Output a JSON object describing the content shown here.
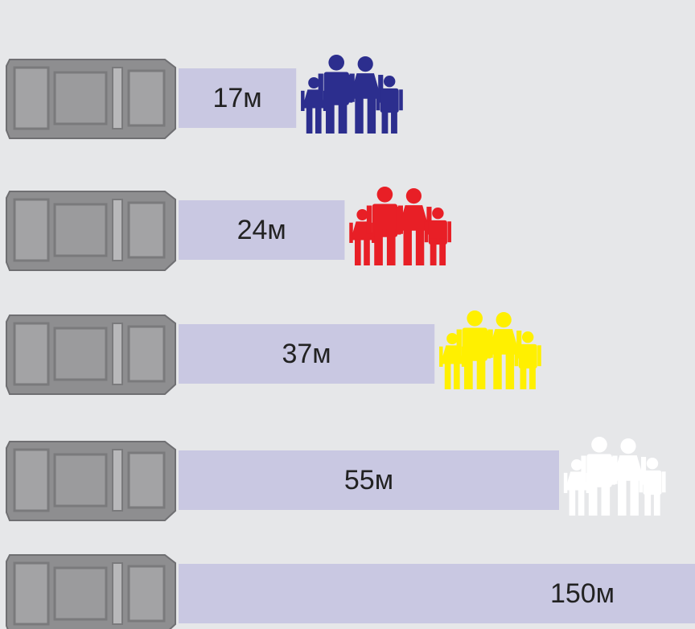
{
  "chart_data": {
    "type": "bar",
    "orientation": "horizontal",
    "values": [
      17,
      24,
      37,
      55,
      150
    ],
    "value_labels": [
      "17м",
      "24м",
      "37м",
      "55м",
      "150м"
    ],
    "color": "#c9c8e2",
    "icon_colors": [
      "#2c2e8e",
      "#e81f26",
      "#fff000",
      "#ffffff",
      null
    ]
  }
}
